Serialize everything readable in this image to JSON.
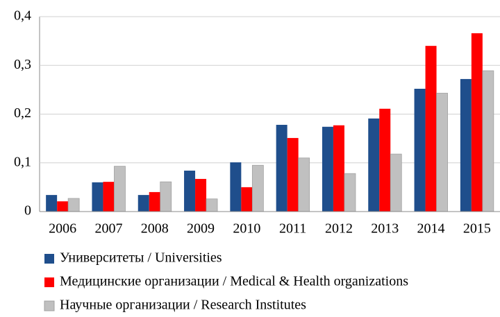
{
  "chart_data": {
    "type": "bar",
    "categories": [
      "2006",
      "2007",
      "2008",
      "2009",
      "2010",
      "2011",
      "2012",
      "2013",
      "2014",
      "2015"
    ],
    "series": [
      {
        "name": "Университеты / Universities",
        "color": "#1f4e8c",
        "values": [
          0.034,
          0.06,
          0.034,
          0.084,
          0.101,
          0.178,
          0.174,
          0.191,
          0.252,
          0.272
        ]
      },
      {
        "name": "Медицинские организации / Medical & Health organizations",
        "color": "#ff0000",
        "values": [
          0.021,
          0.061,
          0.04,
          0.067,
          0.05,
          0.151,
          0.177,
          0.211,
          0.34,
          0.366
        ]
      },
      {
        "name": "Научные организации / Research Institutes",
        "color": "#c0c0c0",
        "values": [
          0.027,
          0.093,
          0.061,
          0.026,
          0.095,
          0.11,
          0.078,
          0.118,
          0.243,
          0.289
        ]
      }
    ],
    "ylim": [
      0,
      0.4
    ],
    "yticks": [
      0,
      {
        "value": 0.1,
        "label": "0,1"
      },
      {
        "value": 0.2,
        "label": "0,2"
      },
      {
        "value": 0.3,
        "label": "0,3"
      },
      {
        "value": 0.4,
        "label": "0,4"
      }
    ],
    "grid": true,
    "legend": "bottom"
  }
}
